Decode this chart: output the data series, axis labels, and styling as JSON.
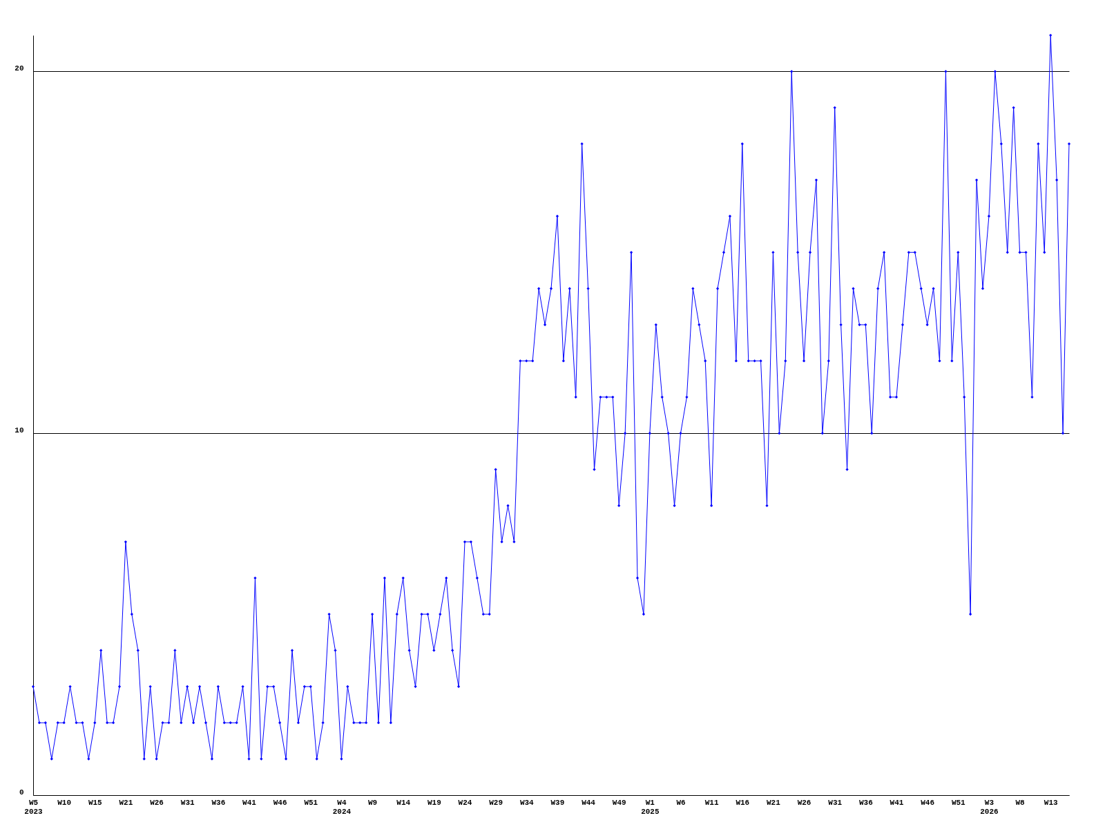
{
  "chart_data": {
    "type": "line",
    "categories": [
      "W5\n2023",
      null,
      null,
      null,
      null,
      "W10",
      null,
      null,
      null,
      null,
      "W15",
      null,
      null,
      null,
      null,
      "W21",
      null,
      null,
      null,
      null,
      "W26",
      null,
      null,
      null,
      null,
      "W31",
      null,
      null,
      null,
      null,
      "W36",
      null,
      null,
      null,
      null,
      "W41",
      null,
      null,
      null,
      null,
      "W46",
      null,
      null,
      null,
      null,
      "W51",
      null,
      null,
      null,
      null,
      "W4\n2024",
      null,
      null,
      null,
      null,
      "W9",
      null,
      null,
      null,
      null,
      "W14",
      null,
      null,
      null,
      null,
      "W19",
      null,
      null,
      null,
      null,
      "W24",
      null,
      null,
      null,
      null,
      "W29",
      null,
      null,
      null,
      null,
      "W34",
      null,
      null,
      null,
      null,
      "W39",
      null,
      null,
      null,
      null,
      "W44",
      null,
      null,
      null,
      null,
      "W49",
      null,
      null,
      null,
      null,
      "W1\n2025",
      null,
      null,
      null,
      null,
      "W6",
      null,
      null,
      null,
      null,
      "W11",
      null,
      null,
      null,
      null,
      "W16",
      null,
      null,
      null,
      null,
      "W21",
      null,
      null,
      null,
      null,
      "W26",
      null,
      null,
      null,
      null,
      "W31",
      null,
      null,
      null,
      null,
      "W36",
      null,
      null,
      null,
      null,
      "W41",
      null,
      null,
      null,
      null,
      "W46",
      null,
      null,
      null,
      null,
      "W51",
      null,
      null,
      null,
      null,
      "W3\n2026",
      null,
      null,
      null,
      null,
      "W8",
      null,
      null,
      null,
      null,
      "W13",
      null,
      null,
      null
    ],
    "series": [
      {
        "color": "#0000ff",
        "values": [
          3,
          2,
          2,
          1,
          2,
          2,
          3,
          2,
          2,
          1,
          2,
          4,
          2,
          2,
          3,
          7,
          5,
          4,
          1,
          3,
          1,
          2,
          2,
          4,
          2,
          3,
          2,
          3,
          2,
          1,
          3,
          2,
          2,
          2,
          3,
          1,
          6,
          1,
          3,
          3,
          2,
          1,
          4,
          2,
          3,
          3,
          1,
          2,
          5,
          4,
          1,
          3,
          2,
          2,
          2,
          5,
          2,
          6,
          2,
          5,
          6,
          4,
          3,
          5,
          5,
          4,
          5,
          6,
          4,
          3,
          7,
          7,
          6,
          5,
          5,
          9,
          7,
          8,
          7,
          12,
          12,
          12,
          14,
          13,
          14,
          16,
          12,
          14,
          11,
          18,
          14,
          9,
          11,
          11,
          11,
          8,
          10,
          15,
          6,
          5,
          10,
          13,
          11,
          10,
          8,
          10,
          11,
          14,
          13,
          12,
          8,
          14,
          15,
          16,
          12,
          18,
          12,
          12,
          12,
          8,
          15,
          10,
          12,
          20,
          15,
          12,
          15,
          17,
          10,
          12,
          19,
          13,
          9,
          14,
          13,
          13,
          10,
          14,
          15,
          11,
          11,
          13,
          15,
          15,
          14,
          13,
          14,
          12,
          20,
          12,
          15,
          11,
          5,
          17,
          14,
          16,
          20,
          18,
          15,
          19,
          15,
          15,
          11,
          18,
          15,
          21,
          17,
          10,
          18
        ]
      }
    ],
    "ylim": [
      0,
      21
    ],
    "yticks": [
      0,
      10,
      20
    ],
    "grid": "y",
    "marker": "diamond",
    "line_style": "solid"
  }
}
